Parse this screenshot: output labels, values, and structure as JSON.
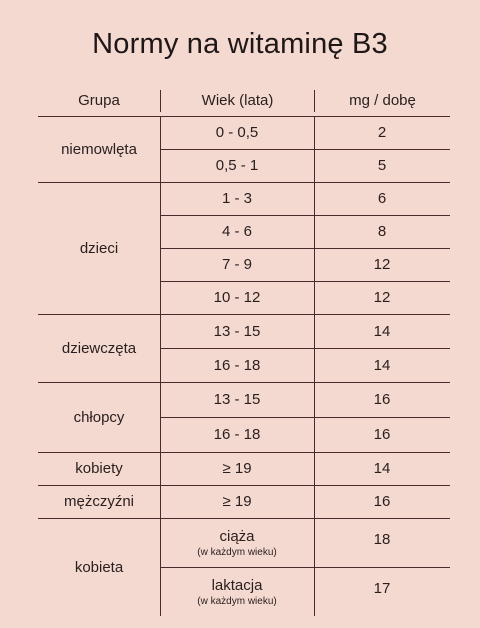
{
  "title": "Normy na witaminę B3",
  "headers": {
    "group": "Grupa",
    "age": "Wiek (lata)",
    "dose": "mg / dobę"
  },
  "groups": [
    {
      "name": "niemowlęta",
      "rows": [
        {
          "age": "0 - 0,5",
          "dose": "2"
        },
        {
          "age": "0,5 - 1",
          "dose": "5"
        }
      ]
    },
    {
      "name": "dzieci",
      "rows": [
        {
          "age": "1 - 3",
          "dose": "6"
        },
        {
          "age": "4 - 6",
          "dose": "8"
        },
        {
          "age": "7 - 9",
          "dose": "12"
        },
        {
          "age": "10 - 12",
          "dose": "12"
        }
      ]
    },
    {
      "name": "dziewczęta",
      "rows": [
        {
          "age": "13 - 15",
          "dose": "14"
        },
        {
          "age": "16 - 18",
          "dose": "14"
        }
      ]
    },
    {
      "name": "chłopcy",
      "rows": [
        {
          "age": "13 - 15",
          "dose": "16"
        },
        {
          "age": "16 - 18",
          "dose": "16"
        }
      ]
    },
    {
      "name": "kobiety",
      "rows": [
        {
          "age": "≥ 19",
          "dose": "14"
        }
      ]
    },
    {
      "name": "mężczyźni",
      "rows": [
        {
          "age": "≥ 19",
          "dose": "16"
        }
      ]
    },
    {
      "name": "kobieta",
      "rows": [
        {
          "age": "ciąża",
          "age_note": "(w każdym wieku)",
          "dose": "18"
        },
        {
          "age": "laktacja",
          "age_note": "(w każdym wieku)",
          "dose": "17"
        }
      ]
    }
  ]
}
